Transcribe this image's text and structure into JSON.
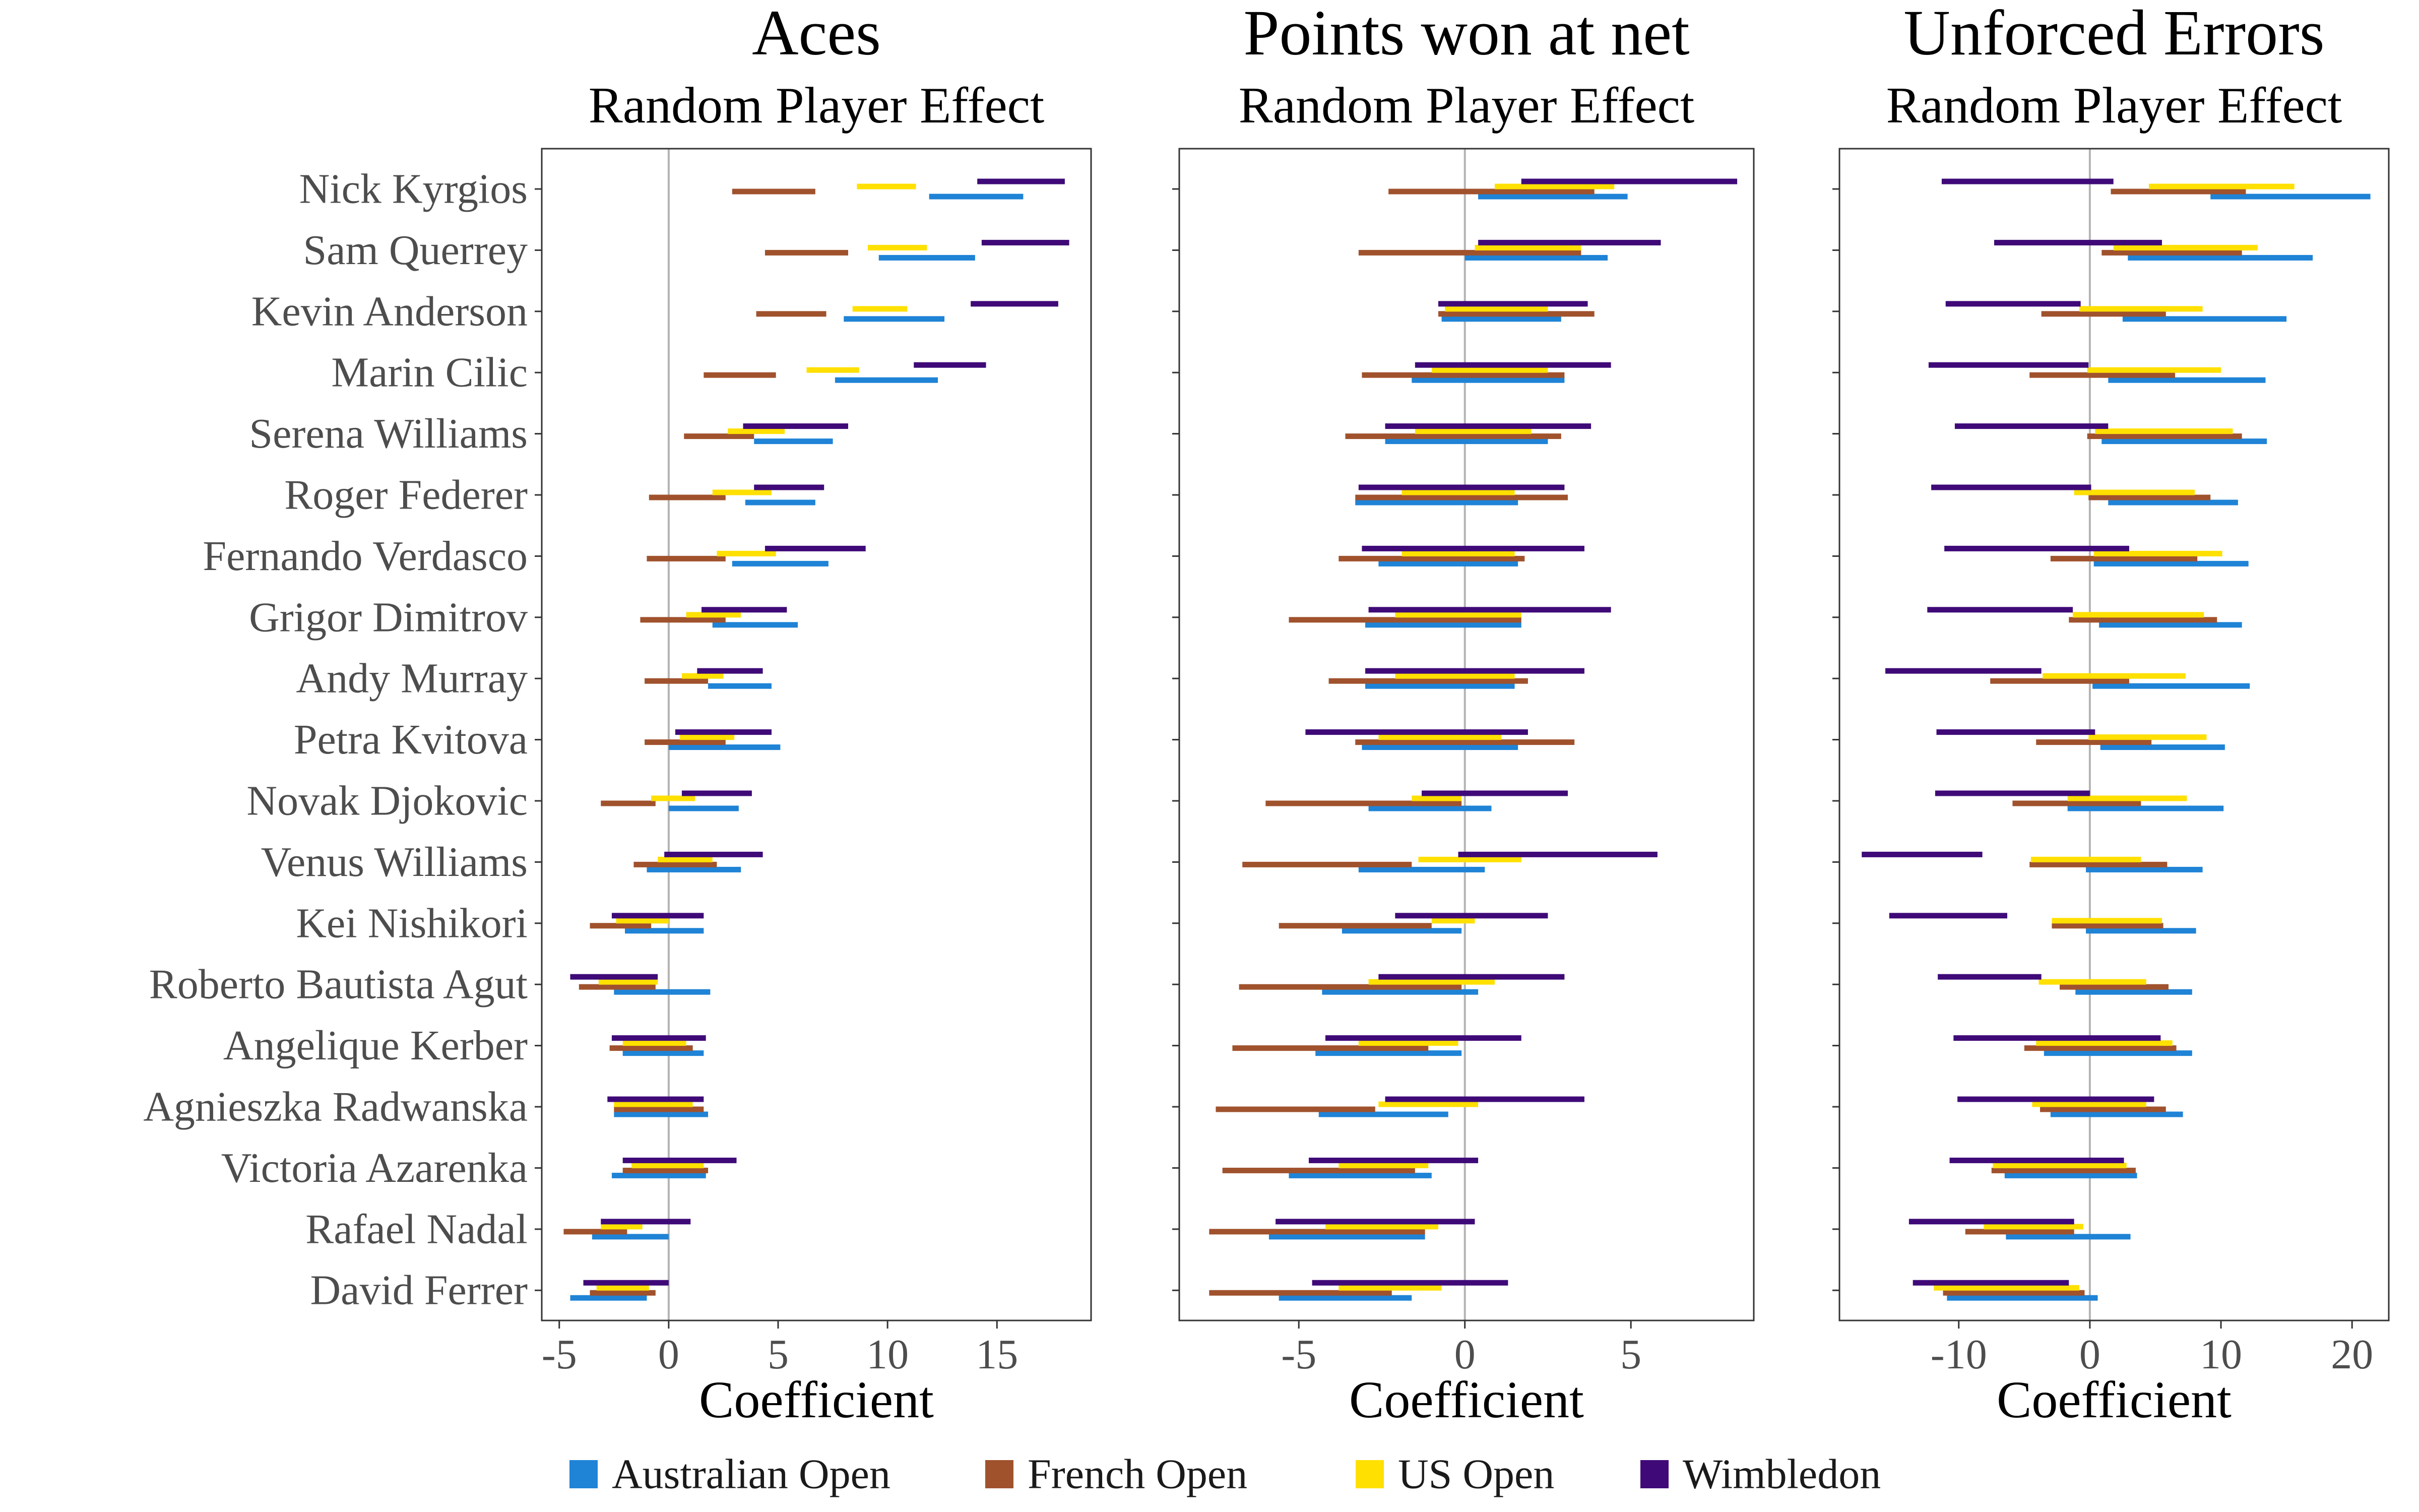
{
  "chart_data": [
    {
      "type": "interval",
      "title": "Aces",
      "subtitle": "Random Player Effect",
      "xlabel": "Coefficient",
      "ylabel": "",
      "xlim": [
        -5.8,
        19.3
      ],
      "x_ticks": [
        -5,
        0,
        5,
        10,
        15
      ],
      "x_tick_labels": [
        "-5",
        "0",
        "5",
        "10",
        "15"
      ],
      "zero_line": true,
      "grid": false,
      "series": [
        {
          "name": "Australian Open",
          "intervals": [
            [
              11.9,
              16.2
            ],
            [
              9.6,
              14
            ],
            [
              8,
              12.6
            ],
            [
              7.6,
              12.3
            ],
            [
              3.9,
              7.5
            ],
            [
              3.5,
              6.7
            ],
            [
              2.9,
              7.3
            ],
            [
              2,
              5.9
            ],
            [
              1.8,
              4.7
            ],
            [
              0,
              5.1
            ],
            [
              0,
              3.2
            ],
            [
              -1,
              3.3
            ],
            [
              -2,
              1.6
            ],
            [
              -2.5,
              1.9
            ],
            [
              -2.1,
              1.6
            ],
            [
              -2.5,
              1.8
            ],
            [
              -2.6,
              1.7
            ],
            [
              -3.5,
              0
            ],
            [
              -4.5,
              -1
            ]
          ]
        },
        {
          "name": "French Open",
          "intervals": [
            [
              2.9,
              6.7
            ],
            [
              4.4,
              8.2
            ],
            [
              4,
              7.2
            ],
            [
              1.6,
              4.9
            ],
            [
              0.7,
              3.9
            ],
            [
              -0.9,
              2.6
            ],
            [
              -1,
              2.6
            ],
            [
              -1.3,
              2.6
            ],
            [
              -1.1,
              1.8
            ],
            [
              -1.1,
              2.6
            ],
            [
              -3.1,
              -0.6
            ],
            [
              -1.6,
              2.2
            ],
            [
              -3.6,
              -0.8
            ],
            [
              -4.1,
              -0.6
            ],
            [
              -2.7,
              1.1
            ],
            [
              -2.5,
              1.6
            ],
            [
              -2.1,
              1.8
            ],
            [
              -4.8,
              -1.9
            ],
            [
              -3.6,
              -0.6
            ]
          ]
        },
        {
          "name": "US Open",
          "intervals": [
            [
              8.6,
              11.3
            ],
            [
              9.1,
              11.8
            ],
            [
              8.4,
              10.9
            ],
            [
              6.3,
              8.7
            ],
            [
              2.7,
              5.3
            ],
            [
              2,
              4.7
            ],
            [
              2.2,
              4.9
            ],
            [
              0.8,
              3.3
            ],
            [
              0.6,
              2.5
            ],
            [
              0.5,
              3
            ],
            [
              -0.8,
              1.2
            ],
            [
              -0.5,
              2
            ],
            [
              -2.4,
              0
            ],
            [
              -3.2,
              -0.5
            ],
            [
              -2.1,
              0.8
            ],
            [
              -2.5,
              1.1
            ],
            [
              -1.7,
              1.6
            ],
            [
              -3.1,
              -1.2
            ],
            [
              -3.3,
              -0.9
            ]
          ]
        },
        {
          "name": "Wimbledon",
          "intervals": [
            [
              14.1,
              18.1
            ],
            [
              14.3,
              18.3
            ],
            [
              13.8,
              17.8
            ],
            [
              11.2,
              14.5
            ],
            [
              3.4,
              8.2
            ],
            [
              3.9,
              7.1
            ],
            [
              4.4,
              9
            ],
            [
              1.5,
              5.4
            ],
            [
              1.3,
              4.3
            ],
            [
              0.3,
              4.7
            ],
            [
              0.6,
              3.8
            ],
            [
              -0.2,
              4.3
            ],
            [
              -2.6,
              1.6
            ],
            [
              -4.5,
              -0.5
            ],
            [
              -2.6,
              1.7
            ],
            [
              -2.8,
              1.6
            ],
            [
              -2.1,
              3.1
            ],
            [
              -3.1,
              1
            ],
            [
              -3.9,
              0
            ]
          ]
        }
      ]
    },
    {
      "type": "interval",
      "title": "Points won at net",
      "subtitle": "Random Player Effect",
      "xlabel": "Coefficient",
      "ylabel": "",
      "xlim": [
        -8.6,
        8.7
      ],
      "x_ticks": [
        -5,
        0,
        5
      ],
      "x_tick_labels": [
        "-5",
        "0",
        "5"
      ],
      "zero_line": true,
      "grid": false,
      "series": [
        {
          "name": "Australian Open",
          "intervals": [
            [
              0.4,
              4.9
            ],
            [
              0,
              4.3
            ],
            [
              -0.7,
              2.9
            ],
            [
              -1.6,
              3
            ],
            [
              -2.4,
              2.5
            ],
            [
              -3.3,
              1.6
            ],
            [
              -2.6,
              1.6
            ],
            [
              -3,
              1.7
            ],
            [
              -3,
              1.5
            ],
            [
              -3.1,
              1.6
            ],
            [
              -2.9,
              0.8
            ],
            [
              -3.2,
              0.6
            ],
            [
              -3.7,
              -0.1
            ],
            [
              -4.3,
              0.4
            ],
            [
              -4.5,
              -0.1
            ],
            [
              -4.4,
              -0.5
            ],
            [
              -5.3,
              -1
            ],
            [
              -5.9,
              -1.2
            ],
            [
              -5.6,
              -1.6
            ]
          ]
        },
        {
          "name": "French Open",
          "intervals": [
            [
              -2.3,
              3.9
            ],
            [
              -3.2,
              3.5
            ],
            [
              -0.8,
              3.9
            ],
            [
              -3.1,
              3
            ],
            [
              -3.6,
              2.9
            ],
            [
              -3.3,
              3.1
            ],
            [
              -3.8,
              1.8
            ],
            [
              -5.3,
              1.7
            ],
            [
              -4.1,
              1.9
            ],
            [
              -3.3,
              3.3
            ],
            [
              -6,
              -0.1
            ],
            [
              -6.7,
              -1.6
            ],
            [
              -5.6,
              -1
            ],
            [
              -6.8,
              -0.1
            ],
            [
              -7,
              -1.1
            ],
            [
              -7.5,
              -2.7
            ],
            [
              -7.3,
              -1.5
            ],
            [
              -7.7,
              -1.2
            ],
            [
              -7.7,
              -2.2
            ]
          ]
        },
        {
          "name": "US Open",
          "intervals": [
            [
              0.9,
              4.5
            ],
            [
              0.3,
              3.5
            ],
            [
              -0.6,
              2.5
            ],
            [
              -1,
              2.5
            ],
            [
              -1.5,
              2
            ],
            [
              -1.9,
              1.5
            ],
            [
              -1.9,
              1.5
            ],
            [
              -2.1,
              1.7
            ],
            [
              -2.1,
              1.5
            ],
            [
              -2.6,
              1.1
            ],
            [
              -1.6,
              -0.1
            ],
            [
              -1.4,
              1.7
            ],
            [
              -1,
              0.3
            ],
            [
              -2.9,
              0.9
            ],
            [
              -3.2,
              -0.2
            ],
            [
              -2.6,
              0.4
            ],
            [
              -3.8,
              -1.1
            ],
            [
              -4.2,
              -0.8
            ],
            [
              -3.8,
              -0.7
            ]
          ]
        },
        {
          "name": "Wimbledon",
          "intervals": [
            [
              1.7,
              8.2
            ],
            [
              0.4,
              5.9
            ],
            [
              -0.8,
              3.7
            ],
            [
              -1.5,
              4.4
            ],
            [
              -2.4,
              3.8
            ],
            [
              -3.2,
              3
            ],
            [
              -3.1,
              3.6
            ],
            [
              -2.9,
              4.4
            ],
            [
              -3,
              3.6
            ],
            [
              -4.8,
              1.9
            ],
            [
              -1.3,
              3.1
            ],
            [
              -0.2,
              5.8
            ],
            [
              -2.1,
              2.5
            ],
            [
              -2.6,
              3
            ],
            [
              -4.2,
              1.7
            ],
            [
              -2.4,
              3.6
            ],
            [
              -4.7,
              0.4
            ],
            [
              -5.7,
              0.3
            ],
            [
              -4.6,
              1.3
            ]
          ]
        }
      ]
    },
    {
      "type": "interval",
      "title": "Unforced Errors",
      "subtitle": "Random Player Effect",
      "xlabel": "Coefficient",
      "ylabel": "",
      "xlim": [
        -19.1,
        22.8
      ],
      "x_ticks": [
        -10,
        0,
        10,
        20
      ],
      "x_tick_labels": [
        "-10",
        "0",
        "10",
        "20"
      ],
      "zero_line": true,
      "grid": false,
      "series": [
        {
          "name": "Australian Open",
          "intervals": [
            [
              9.2,
              21.4
            ],
            [
              2.9,
              17
            ],
            [
              2.5,
              15
            ],
            [
              1.4,
              13.4
            ],
            [
              0.9,
              13.5
            ],
            [
              1.4,
              11.3
            ],
            [
              0.3,
              12.1
            ],
            [
              0.7,
              11.6
            ],
            [
              0.2,
              12.2
            ],
            [
              0.8,
              10.3
            ],
            [
              -1.7,
              10.2
            ],
            [
              -0.3,
              8.6
            ],
            [
              -0.3,
              8.1
            ],
            [
              -1.1,
              7.8
            ],
            [
              -3.5,
              7.8
            ],
            [
              -3,
              7.1
            ],
            [
              -6.5,
              3.6
            ],
            [
              -6.4,
              3.1
            ],
            [
              -10.9,
              0.6
            ]
          ]
        },
        {
          "name": "French Open",
          "intervals": [
            [
              1.6,
              11.9
            ],
            [
              0.9,
              11.6
            ],
            [
              -3.7,
              5.8
            ],
            [
              -4.6,
              6.5
            ],
            [
              -0.2,
              11.6
            ],
            [
              -0.1,
              9.2
            ],
            [
              -3,
              8.2
            ],
            [
              -1.6,
              9.7
            ],
            [
              -7.6,
              3
            ],
            [
              -4.1,
              4.7
            ],
            [
              -5.9,
              3.9
            ],
            [
              -4.6,
              5.9
            ],
            [
              -2.9,
              5.6
            ],
            [
              -2.3,
              6
            ],
            [
              -5,
              6.6
            ],
            [
              -3.8,
              5.8
            ],
            [
              -7.5,
              3.5
            ],
            [
              -9.5,
              -1.2
            ],
            [
              -11.2,
              -0.4
            ]
          ]
        },
        {
          "name": "US Open",
          "intervals": [
            [
              4.5,
              15.6
            ],
            [
              1.8,
              12.8
            ],
            [
              -0.8,
              8.6
            ],
            [
              -0.2,
              10
            ],
            [
              0.4,
              10.9
            ],
            [
              -1.2,
              8
            ],
            [
              0.3,
              10.1
            ],
            [
              -1.3,
              8.7
            ],
            [
              -3.6,
              7.3
            ],
            [
              -0.1,
              8.9
            ],
            [
              -1.7,
              7.4
            ],
            [
              -4.5,
              3.9
            ],
            [
              -2.9,
              5.5
            ],
            [
              -3.9,
              4.3
            ],
            [
              -4.1,
              6.3
            ],
            [
              -4.4,
              4.3
            ],
            [
              -7.4,
              2.8
            ],
            [
              -8.1,
              -0.5
            ],
            [
              -11.9,
              -0.8
            ]
          ]
        },
        {
          "name": "Wimbledon",
          "intervals": [
            [
              -11.3,
              1.8
            ],
            [
              -7.3,
              5.5
            ],
            [
              -11,
              -0.7
            ],
            [
              -12.3,
              -0.1
            ],
            [
              -10.3,
              1.4
            ],
            [
              -12.1,
              0.1
            ],
            [
              -11.1,
              3
            ],
            [
              -12.4,
              -1.3
            ],
            [
              -15.6,
              -3.7
            ],
            [
              -11.7,
              0.4
            ],
            [
              -11.8,
              0
            ],
            [
              -17.4,
              -8.2
            ],
            [
              -15.3,
              -6.3
            ],
            [
              -11.6,
              -3.7
            ],
            [
              -10.4,
              5.4
            ],
            [
              -10.1,
              4.9
            ],
            [
              -10.7,
              2.6
            ],
            [
              -13.8,
              -1.2
            ],
            [
              -13.5,
              -1.6
            ]
          ]
        }
      ]
    }
  ],
  "players": [
    "Nick Kyrgios",
    "Sam Querrey",
    "Kevin Anderson",
    "Marin Cilic",
    "Serena Williams",
    "Roger Federer",
    "Fernando Verdasco",
    "Grigor Dimitrov",
    "Andy Murray",
    "Petra Kvitova",
    "Novak Djokovic",
    "Venus Williams",
    "Kei Nishikori",
    "Roberto Bautista Agut",
    "Angelique Kerber",
    "Agnieszka Radwanska",
    "Victoria Azarenka",
    "Rafael Nadal",
    "David Ferrer"
  ],
  "legend": {
    "placement": "bottom",
    "items": [
      {
        "label": "Australian Open",
        "color": "#1f83d6"
      },
      {
        "label": "French Open",
        "color": "#a0522d"
      },
      {
        "label": "US Open",
        "color": "#ffe000"
      },
      {
        "label": "Wimbledon",
        "color": "#3f0a78"
      }
    ]
  },
  "colors": {
    "panel_border": "#333333",
    "zero_line": "#b3b3b3"
  }
}
